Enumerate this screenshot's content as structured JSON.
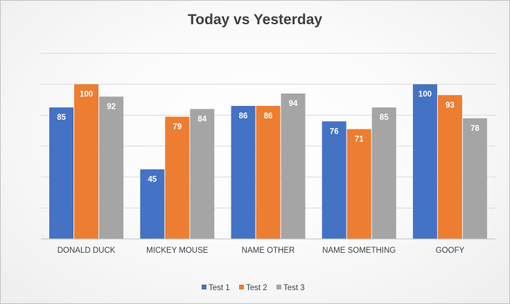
{
  "chart_data": {
    "type": "bar",
    "title": "Today vs Yesterday",
    "categories": [
      "DONALD DUCK",
      "MICKEY MOUSE",
      "NAME OTHER",
      "NAME SOMETHING",
      "GOOFY"
    ],
    "series": [
      {
        "name": "Test 1",
        "color": "#4472C4",
        "values": [
          85,
          45,
          86,
          76,
          100
        ]
      },
      {
        "name": "Test 2",
        "color": "#ED7D31",
        "values": [
          100,
          79,
          86,
          71,
          93
        ]
      },
      {
        "name": "Test 3",
        "color": "#A5A5A5",
        "values": [
          92,
          84,
          94,
          85,
          78
        ]
      }
    ],
    "ylim": [
      0,
      120
    ],
    "y_axis_labels_visible": false,
    "grid": true,
    "legend_position": "bottom"
  }
}
